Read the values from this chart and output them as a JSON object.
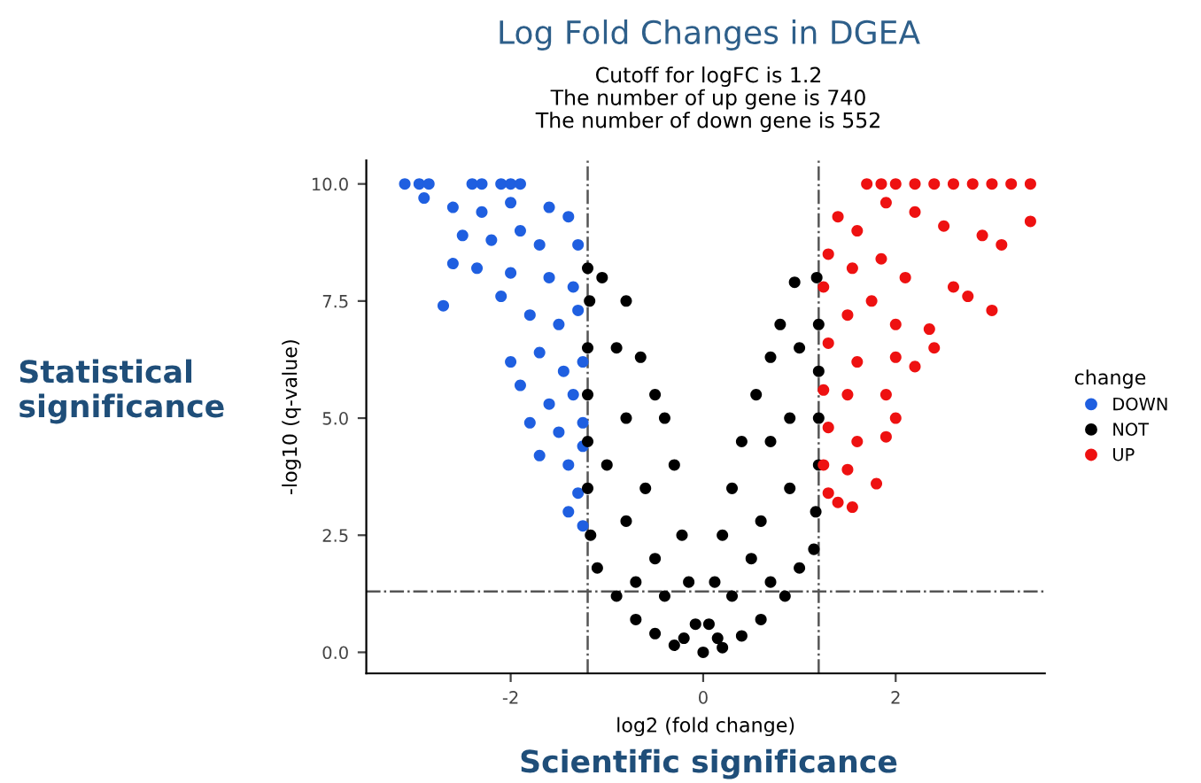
{
  "chart_data": {
    "type": "scatter",
    "title": "Log Fold Changes in DGEA",
    "subtitle": "Cutoff for logFC is 1.2\nThe number of up gene is 740\nThe number of down gene is 552",
    "xlabel": "log2 (fold change)",
    "ylabel": "-log10 (q-value)",
    "legend_title": "change",
    "annotations": [
      "Statistical\nsignificance",
      "Scientific significance"
    ],
    "xlim": [
      -3.5,
      3.55
    ],
    "ylim": [
      -0.45,
      10.5
    ],
    "xticks": [
      -2,
      0,
      2
    ],
    "yticks": [
      {
        "value": 0,
        "label": "0.0"
      },
      {
        "value": 2.5,
        "label": "2.5"
      },
      {
        "value": 5,
        "label": "5.0"
      },
      {
        "value": 7.5,
        "label": "7.5"
      },
      {
        "value": 10,
        "label": "10.0"
      }
    ],
    "grid": false,
    "legend": "right",
    "marker": "circle",
    "ref_lines": [
      {
        "axis": "x",
        "value": -1.2,
        "label": null,
        "color": "#555555",
        "line_style": "dashdot"
      },
      {
        "axis": "x",
        "value": 1.2,
        "label": null,
        "color": "#555555",
        "line_style": "dashdot"
      },
      {
        "axis": "y",
        "value": 1.3,
        "label": null,
        "color": "#555555",
        "line_style": "dashdot"
      }
    ],
    "series": [
      {
        "name": "DOWN",
        "color": "#1f5fe0",
        "x": [
          -3.1,
          -2.95,
          -2.85,
          -2.4,
          -2.3,
          -2.1,
          -2.0,
          -1.9,
          -2.9,
          -2.6,
          -2.3,
          -2.0,
          -1.6,
          -1.4,
          -2.5,
          -2.2,
          -1.9,
          -1.7,
          -1.3,
          -2.6,
          -2.35,
          -2.0,
          -1.6,
          -1.35,
          -2.7,
          -2.1,
          -1.8,
          -1.5,
          -1.3,
          -2.0,
          -1.7,
          -1.45,
          -1.25,
          -1.9,
          -1.6,
          -1.35,
          -1.8,
          -1.5,
          -1.25,
          -1.7,
          -1.4,
          -1.25,
          -1.3,
          -1.4,
          -1.25
        ],
        "values": [
          10,
          10,
          10,
          10,
          10,
          10,
          10,
          10,
          9.7,
          9.5,
          9.4,
          9.6,
          9.5,
          9.3,
          8.9,
          8.8,
          9.0,
          8.7,
          8.7,
          8.3,
          8.2,
          8.1,
          8.0,
          7.8,
          7.4,
          7.6,
          7.2,
          7.0,
          7.3,
          6.2,
          6.4,
          6.0,
          6.2,
          5.7,
          5.3,
          5.5,
          4.9,
          4.7,
          4.9,
          4.2,
          4.0,
          4.4,
          3.4,
          3.0,
          2.7
        ]
      },
      {
        "name": "NOT",
        "color": "#000000",
        "x": [
          -1.2,
          -1.18,
          -1.2,
          -1.2,
          -1.2,
          -1.2,
          -1.17,
          -1.1,
          -0.9,
          -0.7,
          -0.5,
          -0.3,
          0,
          -1.05,
          -0.8,
          -0.65,
          -0.5,
          -0.4,
          -0.3,
          -0.22,
          -0.15,
          -0.08,
          -0.9,
          -0.8,
          -1.0,
          -0.6,
          -0.8,
          -0.5,
          -0.4,
          -0.7,
          -0.2,
          1.18,
          1.2,
          1.2,
          1.2,
          1.2,
          1.17,
          1.15,
          1.0,
          0.85,
          0.6,
          0.4,
          0.2,
          0.95,
          0.8,
          0.7,
          0.55,
          0.4,
          0.3,
          0.2,
          0.12,
          0.06,
          1.0,
          0.9,
          0.7,
          0.9,
          0.6,
          0.5,
          0.3,
          0.7,
          0.15
        ],
        "values": [
          8.2,
          7.5,
          6.5,
          5.5,
          4.5,
          3.5,
          2.5,
          1.8,
          1.2,
          0.7,
          0.4,
          0.15,
          0,
          8.0,
          7.5,
          6.3,
          5.5,
          5.0,
          4.0,
          2.5,
          1.5,
          0.6,
          6.5,
          5.0,
          4.0,
          3.5,
          2.8,
          2.0,
          1.2,
          1.5,
          0.3,
          8.0,
          7.0,
          6.0,
          5.0,
          4.0,
          3.0,
          2.2,
          1.8,
          1.2,
          0.7,
          0.35,
          0.1,
          7.9,
          7.0,
          6.3,
          5.5,
          4.5,
          3.5,
          2.5,
          1.5,
          0.6,
          6.5,
          5.0,
          4.5,
          3.5,
          2.8,
          2.0,
          1.2,
          1.5,
          0.3
        ]
      },
      {
        "name": "UP",
        "color": "#ee1111",
        "x": [
          1.7,
          1.85,
          2.0,
          2.2,
          2.4,
          2.6,
          2.8,
          3.0,
          3.2,
          3.4,
          1.9,
          2.2,
          2.5,
          2.9,
          3.1,
          3.4,
          1.4,
          1.6,
          1.3,
          1.55,
          1.85,
          2.1,
          2.6,
          2.75,
          3.0,
          1.25,
          1.5,
          1.75,
          2.0,
          2.35,
          2.4,
          1.3,
          1.6,
          2.0,
          2.2,
          1.25,
          1.5,
          1.9,
          2.0,
          1.3,
          1.6,
          1.9,
          1.25,
          1.5,
          1.8,
          1.3,
          1.4,
          1.55
        ],
        "values": [
          10,
          10,
          10,
          10,
          10,
          10,
          10,
          10,
          10,
          10,
          9.6,
          9.4,
          9.1,
          8.9,
          8.7,
          9.2,
          9.3,
          9.0,
          8.5,
          8.2,
          8.4,
          8.0,
          7.8,
          7.6,
          7.3,
          7.8,
          7.2,
          7.5,
          7.0,
          6.9,
          6.5,
          6.6,
          6.2,
          6.3,
          6.1,
          5.6,
          5.5,
          5.5,
          5.0,
          4.8,
          4.5,
          4.6,
          4.0,
          3.9,
          3.6,
          3.4,
          3.2,
          3.1
        ]
      }
    ]
  }
}
